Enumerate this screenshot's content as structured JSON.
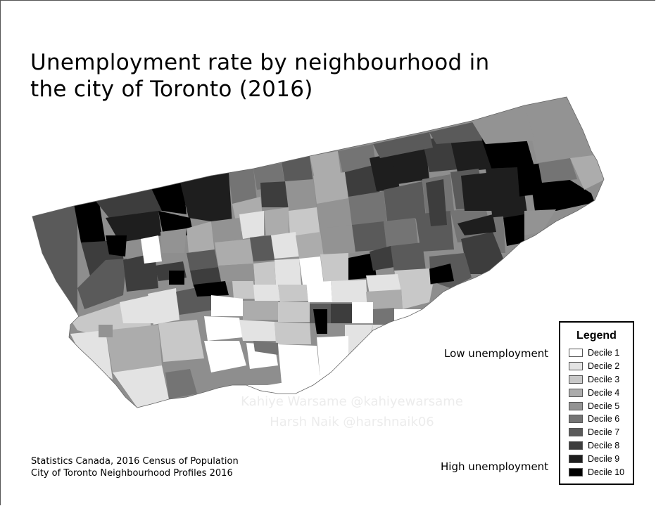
{
  "title_lines": [
    "Unemployment rate by neighbourhood in",
    "the city of Toronto (2016)"
  ],
  "watermark": [
    "Kahiye Warsame @kahiyewarsame",
    "Harsh Naik @harshnaik06"
  ],
  "low_label": "Low unemployment",
  "high_label": "High unemployment",
  "legend": {
    "title": "Legend",
    "items": [
      {
        "label": "Decile 1",
        "color": "#ffffff"
      },
      {
        "label": "Decile 2",
        "color": "#e3e3e3"
      },
      {
        "label": "Decile 3",
        "color": "#c8c8c8"
      },
      {
        "label": "Decile 4",
        "color": "#acacac"
      },
      {
        "label": "Decile 5",
        "color": "#939393"
      },
      {
        "label": "Decile 6",
        "color": "#747474"
      },
      {
        "label": "Decile 7",
        "color": "#5a5a5a"
      },
      {
        "label": "Decile 8",
        "color": "#3d3d3d"
      },
      {
        "label": "Decile 9",
        "color": "#1e1e1e"
      },
      {
        "label": "Decile 10",
        "color": "#000000"
      }
    ]
  },
  "source_lines": [
    "Statistics Canada, 2016 Census of Population",
    "City of Toronto Neighbourhood Profiles 2016"
  ]
}
